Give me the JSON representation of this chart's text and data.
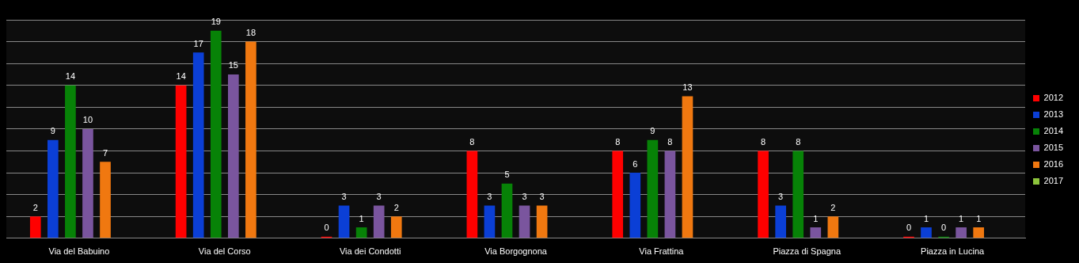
{
  "chart_data": {
    "type": "bar",
    "categories": [
      "Via del Babuino",
      "Via del Corso",
      "Via dei Condotti",
      "Via Borgognona",
      "Via Frattina",
      "Piazza di Spagna",
      "Piazza in Lucina"
    ],
    "series": [
      {
        "name": "2012",
        "color": "#ff0000",
        "values": [
          2,
          14,
          0,
          8,
          8,
          8,
          0
        ]
      },
      {
        "name": "2013",
        "color": "#0b3fd6",
        "values": [
          9,
          17,
          3,
          3,
          6,
          3,
          1
        ]
      },
      {
        "name": "2014",
        "color": "#078207",
        "values": [
          14,
          19,
          1,
          5,
          9,
          8,
          0
        ]
      },
      {
        "name": "2015",
        "color": "#7a559e",
        "values": [
          10,
          15,
          3,
          3,
          8,
          1,
          1
        ]
      },
      {
        "name": "2016",
        "color": "#f07810",
        "values": [
          7,
          18,
          2,
          3,
          13,
          2,
          1
        ]
      },
      {
        "name": "2017",
        "color": "#8cc43c",
        "values": [
          null,
          null,
          null,
          null,
          null,
          null,
          null
        ]
      }
    ],
    "data_labels": true,
    "grid": "y",
    "legend": "right",
    "tick_labels": "x"
  }
}
